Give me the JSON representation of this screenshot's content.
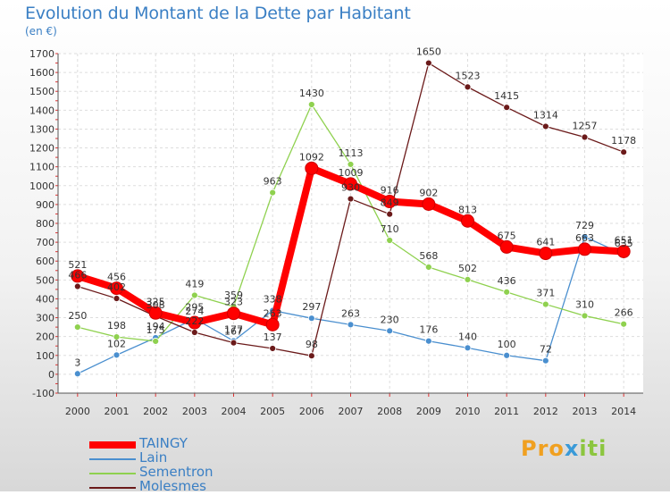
{
  "title": "Evolution du Montant de la Dette par Habitant",
  "subtitle": "(en €)",
  "brand": "Proxiti",
  "chart_data": {
    "type": "line",
    "title": "Evolution du Montant de la Dette par Habitant",
    "subtitle": "(en €)",
    "x": [
      "2000",
      "2001",
      "2002",
      "2003",
      "2004",
      "2005",
      "2006",
      "2007",
      "2008",
      "2009",
      "2010",
      "2011",
      "2012",
      "2013",
      "2014"
    ],
    "ylim": [
      -100,
      1700
    ],
    "yticks": [
      -100,
      0,
      100,
      200,
      300,
      400,
      500,
      600,
      700,
      800,
      900,
      1000,
      1100,
      1200,
      1300,
      1400,
      1500,
      1600,
      1700
    ],
    "grid": true,
    "legend_position": "bottom-left",
    "series": [
      {
        "name": "TAINGY",
        "color": "#ff0000",
        "values": [
          521,
          456,
          325,
          274,
          323,
          263,
          1092,
          1009,
          916,
          902,
          813,
          675,
          641,
          663,
          651
        ]
      },
      {
        "name": "Lain",
        "color": "#4a8fcf",
        "values": [
          3,
          102,
          194,
          295,
          177,
          338,
          297,
          263,
          230,
          176,
          140,
          100,
          72,
          729,
          635
        ]
      },
      {
        "name": "Sementron",
        "color": "#8fd14f",
        "values": [
          250,
          198,
          175,
          419,
          359,
          963,
          1430,
          1113,
          710,
          568,
          502,
          436,
          371,
          310,
          266
        ]
      },
      {
        "name": "Molesmes",
        "color": "#6b1a1a",
        "values": [
          466,
          402,
          308,
          222,
          167,
          137,
          98,
          930,
          849,
          1650,
          1523,
          1415,
          1314,
          1257,
          1178
        ]
      }
    ]
  }
}
